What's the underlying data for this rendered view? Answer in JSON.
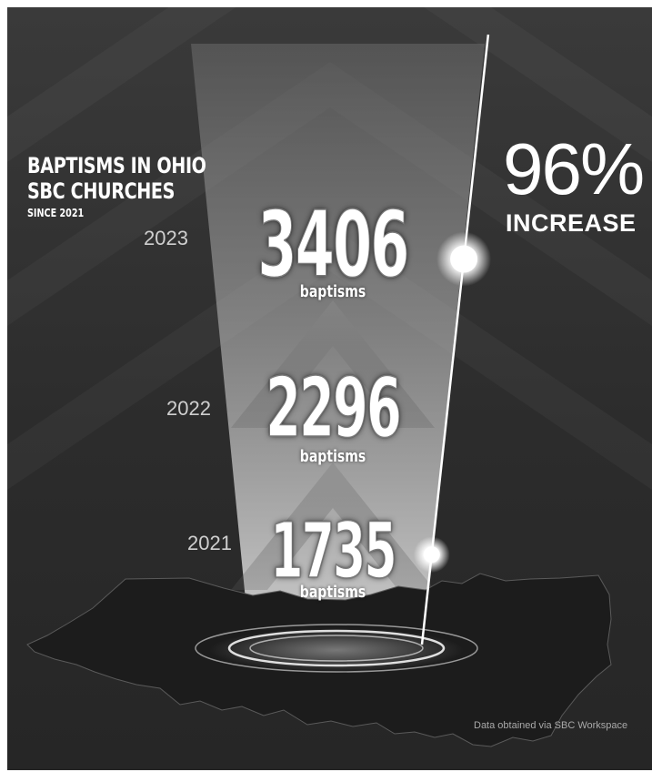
{
  "title_line1": "BAPTISMS IN OHIO",
  "title_line2": "SBC CHURCHES",
  "subtitle": "SINCE 2021",
  "increase_value": "96%",
  "increase_label": "INCREASE",
  "source": "Data obtained via SBC Workspace",
  "colors": {
    "background": "#2f2f2f",
    "text": "#ffffff",
    "map": "#1c1c1c",
    "year_text": "#cfcfcf"
  },
  "chart_data": {
    "type": "line",
    "title": "BAPTISMS IN OHIO SBC CHURCHES",
    "subtitle": "SINCE 2021",
    "categories": [
      "2021",
      "2022",
      "2023"
    ],
    "series": [
      {
        "values": [
          1735,
          2296,
          3406
        ]
      }
    ],
    "value_labels": [
      "1735",
      "2296",
      "3406"
    ],
    "unit_label": "baptisms",
    "annotation": "96% INCREASE"
  }
}
